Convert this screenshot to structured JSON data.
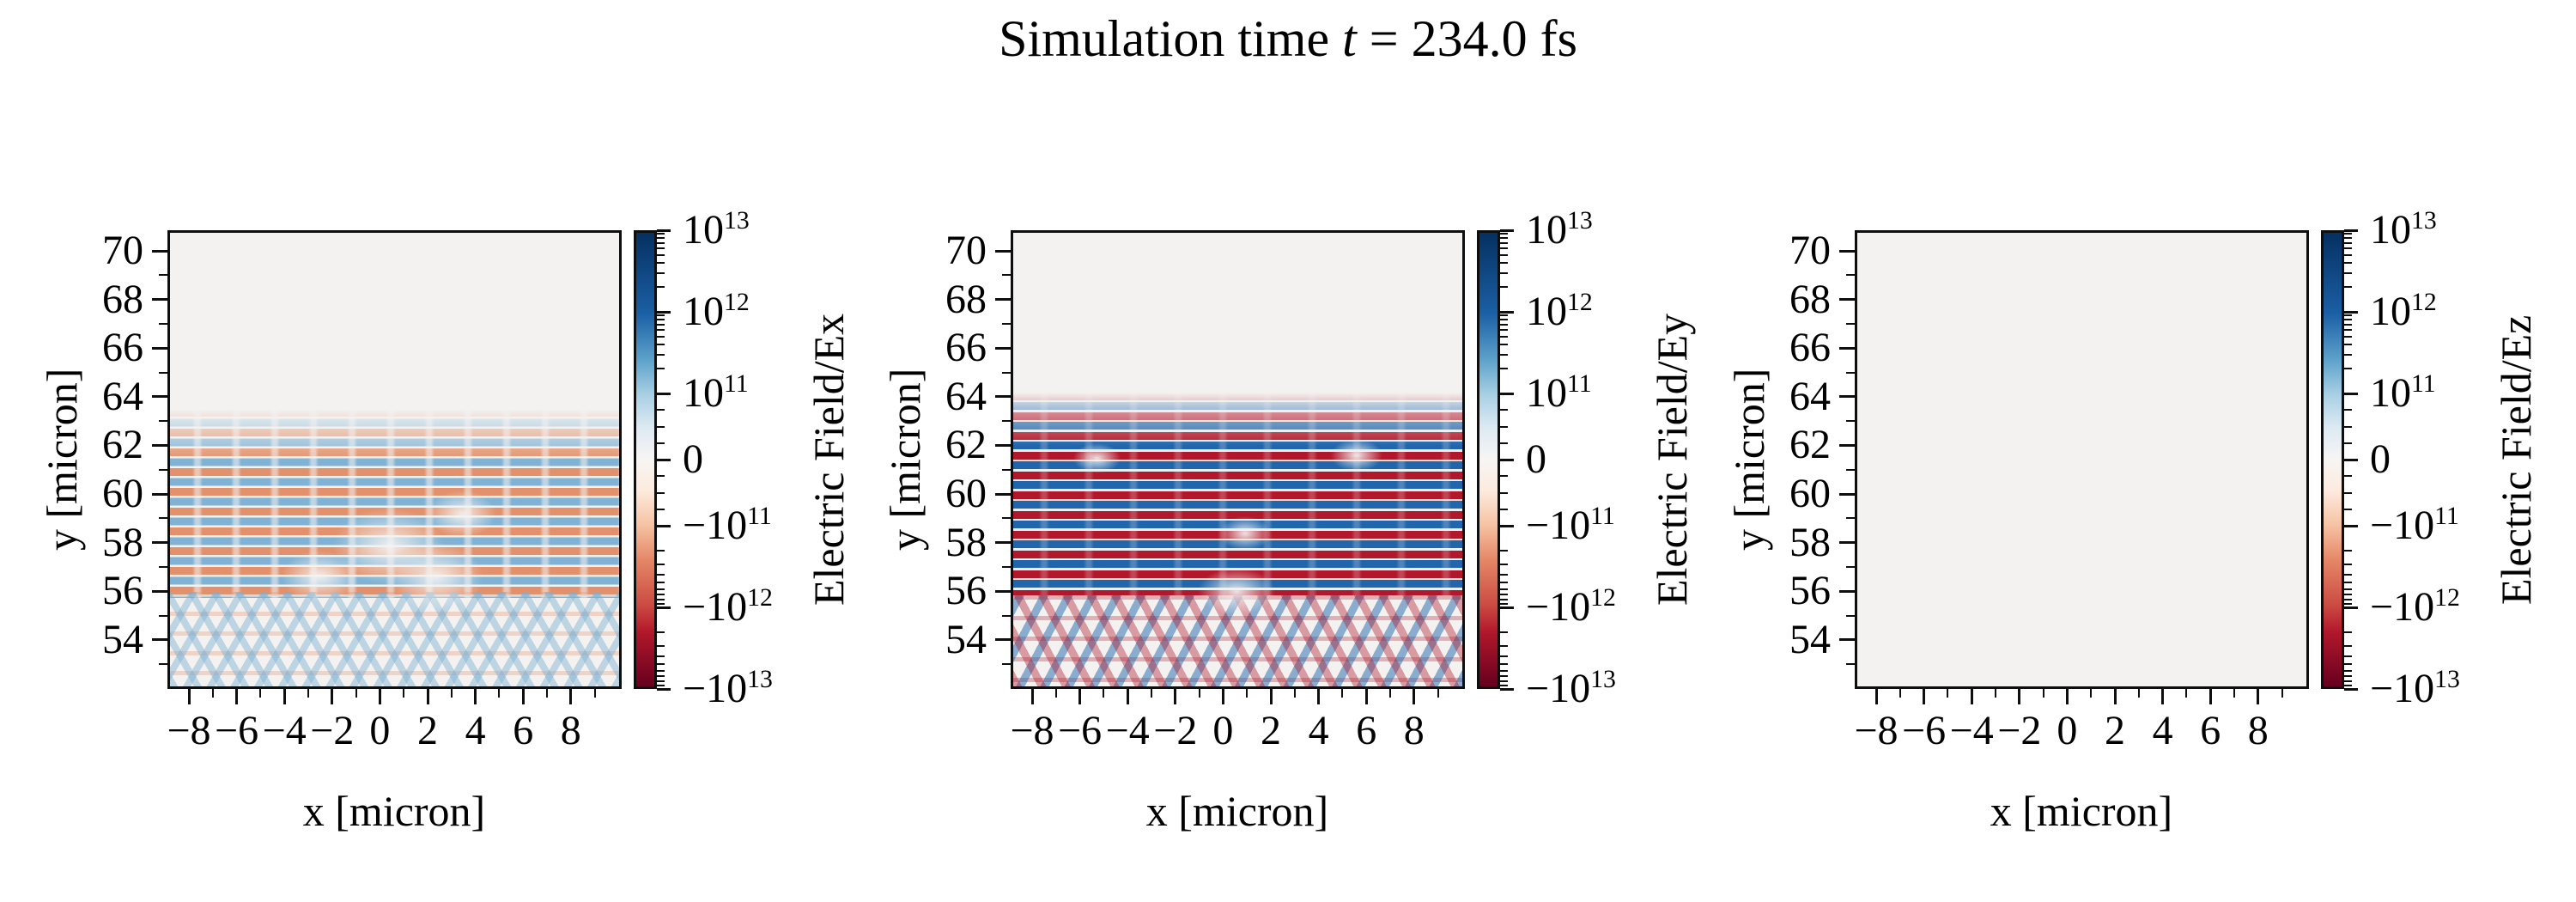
{
  "title": {
    "before": "Simulation time ",
    "var": "t",
    "after": " = 234.0 fs"
  },
  "axis": {
    "x_ticks": [
      "−8",
      "−6",
      "−4",
      "−2",
      "0",
      "2",
      "4",
      "6",
      "8"
    ],
    "y_ticks": [
      "70",
      "68",
      "66",
      "64",
      "62",
      "60",
      "58",
      "56",
      "54"
    ]
  },
  "colorbar": {
    "ticks": [
      {
        "m": "10",
        "e": "13"
      },
      {
        "m": "10",
        "e": "12"
      },
      {
        "m": "10",
        "e": "11"
      },
      {
        "m": "0",
        "e": ""
      },
      {
        "m": "−10",
        "e": "11"
      },
      {
        "m": "−10",
        "e": "12"
      },
      {
        "m": "−10",
        "e": "13"
      }
    ]
  },
  "panels": [
    {
      "field": "Ex",
      "x_label": "x [micron]",
      "y_label": "y [micron]",
      "colorbar_label": "Electric Field/Ex",
      "pattern": "ex"
    },
    {
      "field": "Ey",
      "x_label": "x [micron]",
      "y_label": "y [micron]",
      "colorbar_label": "Electric Field/Ey",
      "pattern": "ey"
    },
    {
      "field": "Ez",
      "x_label": "x [micron]",
      "y_label": "y [micron]",
      "colorbar_label": "Electric Field/Ez",
      "pattern": "empty"
    }
  ],
  "colors": {
    "background": "#ffffff",
    "plot_background": "#f3f2f1",
    "spine": "#0e0e0e",
    "stripe_red_strong": "#b2182b",
    "stripe_blue_strong": "#2166ac",
    "stripe_red_light": "#e2916c",
    "stripe_blue_light": "#7fb2d4",
    "cmap_top": "#053061",
    "cmap_mid": "#f7f5f4",
    "cmap_bottom": "#67001f"
  },
  "chart_data": [
    {
      "type": "heatmap",
      "title": "Electric Field/Ex",
      "xlabel": "x [micron]",
      "ylabel": "y [micron]",
      "x_range": [
        -8.9,
        10.1
      ],
      "y_range": [
        52.0,
        70.9
      ],
      "x_ticks": [
        -8,
        -6,
        -4,
        -2,
        0,
        2,
        4,
        6,
        8
      ],
      "y_ticks": [
        70,
        68,
        66,
        64,
        62,
        60,
        58,
        56,
        54
      ],
      "colormap": "RdBu (blue = positive, red = negative)",
      "color_scale": "symlog",
      "clim": [
        -10000000000000.0,
        10000000000000.0
      ],
      "colorbar_ticks": [
        10000000000000.0,
        1000000000000.0,
        100000000000.0,
        0,
        -100000000000.0,
        -1000000000000.0,
        -10000000000000.0
      ],
      "grid": false,
      "content": "Moderate-amplitude (~1e12) horizontal alternating red/blue laser stripes with period ≈ 0.8 micron between y ≈ 55.5 and y ≈ 63.5, broken by vertical striations and a central V-shaped disruption near x ≈ 0; below y ≈ 55.5 a light-blue criss-cross diagonal interference fan converges toward center-bottom; field ≈ 0 (uniform light gray) above y ≈ 63.5."
    },
    {
      "type": "heatmap",
      "title": "Electric Field/Ey",
      "xlabel": "x [micron]",
      "ylabel": "y [micron]",
      "x_range": [
        -8.9,
        10.1
      ],
      "y_range": [
        52.0,
        70.9
      ],
      "x_ticks": [
        -8,
        -6,
        -4,
        -2,
        0,
        2,
        4,
        6,
        8
      ],
      "y_ticks": [
        70,
        68,
        66,
        64,
        62,
        60,
        58,
        56,
        54
      ],
      "colormap": "RdBu (blue = positive, red = negative)",
      "color_scale": "symlog",
      "clim": [
        -10000000000000.0,
        10000000000000.0
      ],
      "colorbar_ticks": [
        10000000000000.0,
        1000000000000.0,
        100000000000.0,
        0,
        -100000000000.0,
        -1000000000000.0,
        -10000000000000.0
      ],
      "grid": false,
      "content": "Saturated (≥1e13) horizontal alternating red/blue stripes with period ≈ 0.8 micron between y ≈ 56 and y ≈ 63.8 (fading in from y ≈ 64); below y ≈ 56 the stripes break into a strong red/blue diagonal criss-cross interference fan converging in a V toward center-bottom; field ≈ 0 above y ≈ 64."
    },
    {
      "type": "heatmap",
      "title": "Electric Field/Ez",
      "xlabel": "x [micron]",
      "ylabel": "y [micron]",
      "x_range": [
        -8.9,
        10.1
      ],
      "y_range": [
        52.0,
        70.9
      ],
      "x_ticks": [
        -8,
        -6,
        -4,
        -2,
        0,
        2,
        4,
        6,
        8
      ],
      "y_ticks": [
        70,
        68,
        66,
        64,
        62,
        60,
        58,
        56,
        54
      ],
      "colormap": "RdBu (blue = positive, red = negative)",
      "color_scale": "symlog",
      "clim": [
        -10000000000000.0,
        10000000000000.0
      ],
      "colorbar_ticks": [
        10000000000000.0,
        1000000000000.0,
        100000000000.0,
        0,
        -100000000000.0,
        -1000000000000.0,
        -10000000000000.0
      ],
      "grid": false,
      "content": "Uniform near-zero field everywhere (blank light-gray panel)."
    }
  ]
}
